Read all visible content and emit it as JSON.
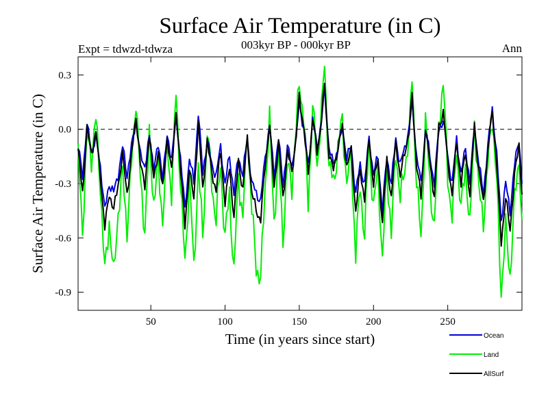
{
  "chart_data": {
    "type": "line",
    "title": "Surface Air Temperature (in C)",
    "subtitle": "003kyr BP - 000kyr BP",
    "left_note": "Expt = tdwzd-tdwza",
    "right_note": "Ann",
    "xlabel": "Time (in years since start)",
    "ylabel": "Surface Air Temperature (in C)",
    "xlim": [
      1,
      300
    ],
    "ylim": [
      -1.0,
      0.4
    ],
    "x_ticks": [
      50,
      100,
      150,
      200,
      250
    ],
    "y_ticks": [
      0.3,
      0.0,
      -0.3,
      -0.6,
      -0.9
    ],
    "y_tick_labels": [
      "0.3",
      "0.0",
      "-0.3",
      "-0.6",
      "-0.9"
    ],
    "zero_line": {
      "y": 0.0,
      "style": "dashed"
    },
    "legend_position": "bottom-right, below plot",
    "series": [
      {
        "name": "Land",
        "color": "#00ee00",
        "anchors": [
          [
            1,
            -0.15
          ],
          [
            4,
            -0.55
          ],
          [
            7,
            -0.05
          ],
          [
            10,
            -0.15
          ],
          [
            13,
            0.05
          ],
          [
            16,
            -0.3
          ],
          [
            19,
            -0.8
          ],
          [
            22,
            -0.5
          ],
          [
            25,
            -0.82
          ],
          [
            28,
            -0.45
          ],
          [
            31,
            -0.25
          ],
          [
            34,
            -0.55
          ],
          [
            37,
            -0.2
          ],
          [
            40,
            0.18
          ],
          [
            43,
            -0.3
          ],
          [
            46,
            -0.55
          ],
          [
            49,
            -0.05
          ],
          [
            52,
            -0.4
          ],
          [
            55,
            -0.2
          ],
          [
            58,
            -0.5
          ],
          [
            61,
            -0.1
          ],
          [
            64,
            -0.35
          ],
          [
            67,
            0.2
          ],
          [
            70,
            -0.3
          ],
          [
            73,
            -0.75
          ],
          [
            76,
            -0.25
          ],
          [
            79,
            -0.78
          ],
          [
            82,
            -0.2
          ],
          [
            85,
            -0.6
          ],
          [
            88,
            0.0
          ],
          [
            91,
            -0.3
          ],
          [
            94,
            -0.5
          ],
          [
            97,
            -0.2
          ],
          [
            100,
            -0.6
          ],
          [
            103,
            -0.35
          ],
          [
            106,
            -0.8
          ],
          [
            109,
            -0.25
          ],
          [
            112,
            -0.5
          ],
          [
            115,
            0.0
          ],
          [
            118,
            -0.45
          ],
          [
            121,
            -0.75
          ],
          [
            124,
            -0.84
          ],
          [
            127,
            -0.3
          ],
          [
            130,
            0.05
          ],
          [
            133,
            -0.5
          ],
          [
            136,
            -0.15
          ],
          [
            139,
            -0.6
          ],
          [
            142,
            -0.2
          ],
          [
            145,
            -0.3
          ],
          [
            148,
            0.0
          ],
          [
            150,
            0.28
          ],
          [
            153,
            0.05
          ],
          [
            156,
            -0.4
          ],
          [
            159,
            0.12
          ],
          [
            162,
            -0.2
          ],
          [
            165,
            0.1
          ],
          [
            167,
            0.35
          ],
          [
            170,
            -0.2
          ],
          [
            173,
            -0.3
          ],
          [
            176,
            -0.1
          ],
          [
            179,
            0.05
          ],
          [
            182,
            -0.3
          ],
          [
            185,
            -0.15
          ],
          [
            188,
            -0.7
          ],
          [
            191,
            -0.3
          ],
          [
            194,
            -0.6
          ],
          [
            197,
            -0.05
          ],
          [
            200,
            -0.45
          ],
          [
            203,
            -0.2
          ],
          [
            206,
            -0.75
          ],
          [
            209,
            -0.2
          ],
          [
            212,
            -0.6
          ],
          [
            215,
            -0.1
          ],
          [
            218,
            -0.4
          ],
          [
            221,
            -0.2
          ],
          [
            224,
            -0.05
          ],
          [
            226,
            0.3
          ],
          [
            229,
            -0.3
          ],
          [
            232,
            -0.6
          ],
          [
            235,
            0.05
          ],
          [
            238,
            -0.3
          ],
          [
            241,
            -0.55
          ],
          [
            244,
            0.05
          ],
          [
            247,
            0.25
          ],
          [
            250,
            -0.25
          ],
          [
            253,
            -0.5
          ],
          [
            256,
            -0.1
          ],
          [
            259,
            -0.45
          ],
          [
            262,
            -0.2
          ],
          [
            265,
            -0.55
          ],
          [
            268,
            0.05
          ],
          [
            271,
            -0.35
          ],
          [
            274,
            -0.5
          ],
          [
            277,
            -0.2
          ],
          [
            280,
            0.08
          ],
          [
            283,
            -0.3
          ],
          [
            286,
            -0.9
          ],
          [
            289,
            -0.55
          ],
          [
            292,
            -0.8
          ],
          [
            295,
            -0.4
          ],
          [
            298,
            -0.15
          ],
          [
            300,
            -0.5
          ]
        ]
      },
      {
        "name": "Ocean",
        "color": "#0000dd",
        "anchors": [
          [
            1,
            -0.1
          ],
          [
            4,
            -0.25
          ],
          [
            7,
            0.02
          ],
          [
            10,
            -0.12
          ],
          [
            13,
            -0.05
          ],
          [
            16,
            -0.2
          ],
          [
            19,
            -0.45
          ],
          [
            22,
            -0.3
          ],
          [
            25,
            -0.35
          ],
          [
            28,
            -0.25
          ],
          [
            31,
            -0.1
          ],
          [
            34,
            -0.25
          ],
          [
            37,
            -0.1
          ],
          [
            40,
            0.05
          ],
          [
            43,
            -0.15
          ],
          [
            46,
            -0.2
          ],
          [
            49,
            -0.05
          ],
          [
            52,
            -0.2
          ],
          [
            55,
            -0.1
          ],
          [
            58,
            -0.25
          ],
          [
            61,
            -0.05
          ],
          [
            64,
            -0.15
          ],
          [
            67,
            0.05
          ],
          [
            70,
            -0.15
          ],
          [
            73,
            -0.45
          ],
          [
            76,
            -0.15
          ],
          [
            79,
            -0.3
          ],
          [
            82,
            0.1
          ],
          [
            85,
            -0.25
          ],
          [
            88,
            -0.05
          ],
          [
            91,
            -0.2
          ],
          [
            94,
            -0.25
          ],
          [
            97,
            -0.1
          ],
          [
            100,
            -0.3
          ],
          [
            103,
            -0.15
          ],
          [
            106,
            -0.35
          ],
          [
            109,
            -0.15
          ],
          [
            112,
            -0.25
          ],
          [
            115,
            -0.05
          ],
          [
            118,
            -0.3
          ],
          [
            121,
            -0.35
          ],
          [
            124,
            -0.4
          ],
          [
            127,
            -0.15
          ],
          [
            130,
            0.02
          ],
          [
            133,
            -0.25
          ],
          [
            136,
            -0.05
          ],
          [
            139,
            -0.3
          ],
          [
            142,
            -0.1
          ],
          [
            145,
            -0.2
          ],
          [
            148,
            -0.05
          ],
          [
            150,
            0.15
          ],
          [
            153,
            0.0
          ],
          [
            156,
            -0.2
          ],
          [
            159,
            0.05
          ],
          [
            162,
            -0.1
          ],
          [
            165,
            0.05
          ],
          [
            167,
            0.22
          ],
          [
            170,
            -0.1
          ],
          [
            173,
            -0.2
          ],
          [
            176,
            -0.1
          ],
          [
            179,
            0.0
          ],
          [
            182,
            -0.15
          ],
          [
            185,
            -0.1
          ],
          [
            188,
            -0.35
          ],
          [
            191,
            -0.2
          ],
          [
            194,
            -0.3
          ],
          [
            197,
            -0.05
          ],
          [
            200,
            -0.25
          ],
          [
            203,
            -0.15
          ],
          [
            206,
            -0.45
          ],
          [
            209,
            -0.15
          ],
          [
            212,
            -0.3
          ],
          [
            215,
            -0.05
          ],
          [
            218,
            -0.2
          ],
          [
            221,
            -0.1
          ],
          [
            224,
            0.0
          ],
          [
            226,
            0.15
          ],
          [
            229,
            -0.15
          ],
          [
            232,
            -0.3
          ],
          [
            235,
            0.0
          ],
          [
            238,
            -0.15
          ],
          [
            241,
            -0.3
          ],
          [
            244,
            0.0
          ],
          [
            247,
            0.05
          ],
          [
            250,
            -0.15
          ],
          [
            253,
            -0.3
          ],
          [
            256,
            -0.05
          ],
          [
            259,
            -0.25
          ],
          [
            262,
            -0.1
          ],
          [
            265,
            -0.3
          ],
          [
            268,
            0.02
          ],
          [
            271,
            -0.2
          ],
          [
            274,
            -0.35
          ],
          [
            277,
            -0.1
          ],
          [
            280,
            0.12
          ],
          [
            283,
            -0.15
          ],
          [
            286,
            -0.5
          ],
          [
            289,
            -0.3
          ],
          [
            292,
            -0.45
          ],
          [
            295,
            -0.2
          ],
          [
            298,
            -0.05
          ],
          [
            300,
            -0.3
          ]
        ]
      },
      {
        "name": "AllSurf",
        "color": "#000000",
        "anchors": [
          [
            1,
            -0.12
          ],
          [
            4,
            -0.35
          ],
          [
            7,
            0.0
          ],
          [
            10,
            -0.13
          ],
          [
            13,
            -0.02
          ],
          [
            16,
            -0.25
          ],
          [
            19,
            -0.55
          ],
          [
            22,
            -0.35
          ],
          [
            25,
            -0.45
          ],
          [
            28,
            -0.3
          ],
          [
            31,
            -0.15
          ],
          [
            34,
            -0.35
          ],
          [
            37,
            -0.15
          ],
          [
            40,
            0.08
          ],
          [
            43,
            -0.2
          ],
          [
            46,
            -0.3
          ],
          [
            49,
            -0.05
          ],
          [
            52,
            -0.25
          ],
          [
            55,
            -0.15
          ],
          [
            58,
            -0.3
          ],
          [
            61,
            -0.08
          ],
          [
            64,
            -0.2
          ],
          [
            67,
            0.08
          ],
          [
            70,
            -0.2
          ],
          [
            73,
            -0.55
          ],
          [
            76,
            -0.2
          ],
          [
            79,
            -0.4
          ],
          [
            82,
            0.05
          ],
          [
            85,
            -0.35
          ],
          [
            88,
            -0.05
          ],
          [
            91,
            -0.25
          ],
          [
            94,
            -0.33
          ],
          [
            97,
            -0.13
          ],
          [
            100,
            -0.4
          ],
          [
            103,
            -0.22
          ],
          [
            106,
            -0.48
          ],
          [
            109,
            -0.18
          ],
          [
            112,
            -0.33
          ],
          [
            115,
            -0.05
          ],
          [
            118,
            -0.35
          ],
          [
            121,
            -0.45
          ],
          [
            124,
            -0.5
          ],
          [
            127,
            -0.2
          ],
          [
            130,
            0.03
          ],
          [
            133,
            -0.32
          ],
          [
            136,
            -0.08
          ],
          [
            139,
            -0.38
          ],
          [
            142,
            -0.13
          ],
          [
            145,
            -0.23
          ],
          [
            148,
            -0.04
          ],
          [
            150,
            0.18
          ],
          [
            153,
            0.01
          ],
          [
            156,
            -0.25
          ],
          [
            159,
            0.07
          ],
          [
            162,
            -0.13
          ],
          [
            165,
            0.06
          ],
          [
            167,
            0.25
          ],
          [
            170,
            -0.13
          ],
          [
            173,
            -0.23
          ],
          [
            176,
            -0.1
          ],
          [
            179,
            0.01
          ],
          [
            182,
            -0.2
          ],
          [
            185,
            -0.12
          ],
          [
            188,
            -0.45
          ],
          [
            191,
            -0.23
          ],
          [
            194,
            -0.38
          ],
          [
            197,
            -0.05
          ],
          [
            200,
            -0.3
          ],
          [
            203,
            -0.17
          ],
          [
            206,
            -0.52
          ],
          [
            209,
            -0.17
          ],
          [
            212,
            -0.38
          ],
          [
            215,
            -0.07
          ],
          [
            218,
            -0.26
          ],
          [
            221,
            -0.13
          ],
          [
            224,
            -0.01
          ],
          [
            226,
            0.19
          ],
          [
            229,
            -0.19
          ],
          [
            232,
            -0.38
          ],
          [
            235,
            0.01
          ],
          [
            238,
            -0.19
          ],
          [
            241,
            -0.37
          ],
          [
            244,
            0.01
          ],
          [
            247,
            0.1
          ],
          [
            250,
            -0.18
          ],
          [
            253,
            -0.36
          ],
          [
            256,
            -0.07
          ],
          [
            259,
            -0.3
          ],
          [
            262,
            -0.13
          ],
          [
            265,
            -0.37
          ],
          [
            268,
            0.03
          ],
          [
            271,
            -0.24
          ],
          [
            274,
            -0.4
          ],
          [
            277,
            -0.13
          ],
          [
            280,
            0.11
          ],
          [
            283,
            -0.2
          ],
          [
            286,
            -0.62
          ],
          [
            289,
            -0.38
          ],
          [
            292,
            -0.55
          ],
          [
            295,
            -0.26
          ],
          [
            298,
            -0.08
          ],
          [
            300,
            -0.36
          ]
        ]
      }
    ]
  }
}
